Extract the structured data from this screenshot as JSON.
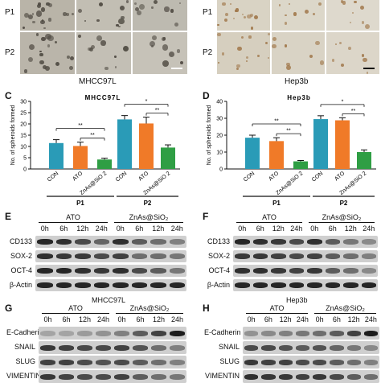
{
  "panel_a": {
    "rows": [
      "P1",
      "P2"
    ],
    "cell_line": "MHCC97L"
  },
  "panel_b": {
    "rows": [
      "P1",
      "P2"
    ],
    "cell_line": "Hep3b"
  },
  "charts": [
    {
      "letter": "C",
      "chart_data": {
        "type": "bar",
        "title": "MHCC97L",
        "ylabel": "No. of spheroids formed",
        "ylim": [
          0,
          30
        ],
        "yticks": [
          0,
          5,
          10,
          15,
          20,
          25,
          30
        ],
        "categories": [
          "CON",
          "ATO",
          "ZnAs@SiO 2",
          "CON",
          "ATO",
          "ZnAs@SiO 2"
        ],
        "groups": [
          "P1",
          "P2"
        ],
        "values": [
          11.5,
          10.2,
          4.2,
          22.0,
          20.2,
          9.5
        ],
        "errors": [
          1.5,
          1.7,
          0.6,
          1.7,
          2.8,
          1.2
        ],
        "colors": [
          "#2a9bb7",
          "#f07a28",
          "#2f9e44",
          "#2a9bb7",
          "#f07a28",
          "#2f9e44"
        ],
        "significance": [
          {
            "from": 0,
            "to": 2,
            "label": "**"
          },
          {
            "from": 1,
            "to": 2,
            "label": "**"
          },
          {
            "from": 3,
            "to": 5,
            "label": "*"
          },
          {
            "from": 4,
            "to": 5,
            "label": "**"
          }
        ]
      }
    },
    {
      "letter": "D",
      "chart_data": {
        "type": "bar",
        "title": "Hep3b",
        "ylabel": "No. of spheroids formed",
        "ylim": [
          0,
          40
        ],
        "yticks": [
          0,
          10,
          20,
          30,
          40
        ],
        "categories": [
          "CON",
          "ATO",
          "ZnAs@SiO 2",
          "CON",
          "ATO",
          "ZnAs@SiO 2"
        ],
        "groups": [
          "P1",
          "P2"
        ],
        "values": [
          18.5,
          16.5,
          4.5,
          29.5,
          28.8,
          10.0
        ],
        "errors": [
          1.5,
          2.0,
          0.5,
          2.0,
          1.5,
          1.3
        ],
        "colors": [
          "#2a9bb7",
          "#f07a28",
          "#2f9e44",
          "#2a9bb7",
          "#f07a28",
          "#2f9e44"
        ],
        "significance": [
          {
            "from": 0,
            "to": 2,
            "label": "**"
          },
          {
            "from": 1,
            "to": 2,
            "label": "**"
          },
          {
            "from": 3,
            "to": 5,
            "label": "*"
          },
          {
            "from": 4,
            "to": 5,
            "label": "**"
          }
        ]
      }
    }
  ],
  "blots": {
    "conditions": [
      "ATO",
      "ZnAs@SiO₂"
    ],
    "times": [
      "0h",
      "6h",
      "12h",
      "24h",
      "0h",
      "6h",
      "12h",
      "24h"
    ],
    "e": {
      "letter": "E",
      "cell_line": "MHCC97L",
      "markers": [
        "CD133",
        "SOX-2",
        "OCT-4",
        "β-Actin"
      ]
    },
    "f": {
      "letter": "F",
      "cell_line": "Hep3b",
      "markers": [
        "CD133",
        "SOX-2",
        "OCT-4",
        "β-Actin"
      ]
    },
    "g": {
      "letter": "G",
      "markers": [
        "E-Cadherin",
        "SNAIL",
        "SLUG",
        "VIMENTIN"
      ]
    },
    "h": {
      "letter": "H",
      "markers": [
        "E-Cadherin",
        "SNAIL",
        "SLUG",
        "VIMENTIN"
      ]
    }
  }
}
